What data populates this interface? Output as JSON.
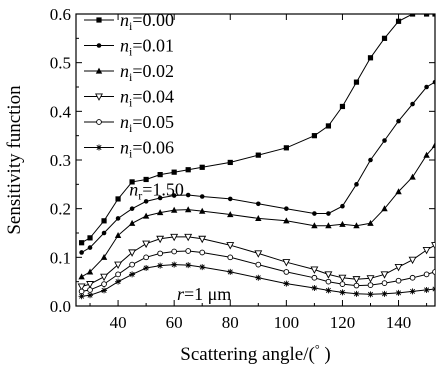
{
  "chart_data": {
    "type": "line",
    "xlabel": "Scattering angle/(",
    "xlabel_unit": "°",
    "xlabel_close": ")",
    "ylabel": "Sensitivity function",
    "xlim": [
      25,
      153
    ],
    "ylim": [
      0.0,
      0.6
    ],
    "x_ticks": [
      40,
      60,
      80,
      100,
      120,
      140
    ],
    "y_ticks": [
      0.0,
      0.1,
      0.2,
      0.3,
      0.4,
      0.5,
      0.6
    ],
    "y_tick_labels": [
      "0.0",
      "0.1",
      "0.2",
      "0.3",
      "0.4",
      "0.5",
      "0.6"
    ],
    "grid": false,
    "legend_position": "top-left",
    "series": [
      {
        "legend_var": "n",
        "legend_sub": "i",
        "legend_val": "=0.00",
        "marker": "square",
        "x": [
          27,
          30,
          35,
          40,
          45,
          50,
          55,
          60,
          65,
          70,
          80,
          90,
          100,
          110,
          115,
          120,
          125,
          130,
          135,
          140,
          145,
          150,
          153
        ],
        "y": [
          0.13,
          0.14,
          0.175,
          0.22,
          0.255,
          0.26,
          0.27,
          0.275,
          0.28,
          0.285,
          0.295,
          0.31,
          0.325,
          0.35,
          0.37,
          0.41,
          0.46,
          0.51,
          0.55,
          0.585,
          0.6,
          0.6,
          0.6
        ]
      },
      {
        "legend_var": "n",
        "legend_sub": "i",
        "legend_val": "=0.01",
        "marker": "dot",
        "x": [
          27,
          30,
          35,
          40,
          45,
          50,
          55,
          60,
          65,
          70,
          80,
          90,
          100,
          110,
          115,
          120,
          125,
          130,
          135,
          140,
          145,
          150,
          153
        ],
        "y": [
          0.11,
          0.12,
          0.15,
          0.18,
          0.2,
          0.215,
          0.222,
          0.227,
          0.228,
          0.225,
          0.22,
          0.21,
          0.2,
          0.19,
          0.19,
          0.205,
          0.25,
          0.3,
          0.34,
          0.38,
          0.415,
          0.45,
          0.46
        ]
      },
      {
        "legend_var": "n",
        "legend_sub": "i",
        "legend_val": "=0.02",
        "marker": "triangle",
        "x": [
          27,
          30,
          35,
          40,
          45,
          50,
          55,
          60,
          65,
          70,
          80,
          90,
          100,
          110,
          115,
          120,
          125,
          130,
          135,
          140,
          145,
          150,
          153
        ],
        "y": [
          0.06,
          0.07,
          0.1,
          0.145,
          0.17,
          0.185,
          0.192,
          0.197,
          0.198,
          0.195,
          0.188,
          0.18,
          0.175,
          0.165,
          0.165,
          0.168,
          0.165,
          0.17,
          0.2,
          0.235,
          0.265,
          0.31,
          0.33
        ]
      },
      {
        "legend_var": "n",
        "legend_sub": "i",
        "legend_val": "=0.04",
        "marker": "triangle-down",
        "x": [
          27,
          30,
          35,
          40,
          45,
          50,
          55,
          60,
          65,
          70,
          80,
          90,
          100,
          110,
          115,
          120,
          125,
          130,
          135,
          140,
          145,
          150,
          153
        ],
        "y": [
          0.04,
          0.045,
          0.06,
          0.085,
          0.11,
          0.128,
          0.138,
          0.142,
          0.142,
          0.138,
          0.125,
          0.108,
          0.09,
          0.075,
          0.065,
          0.058,
          0.055,
          0.057,
          0.065,
          0.08,
          0.095,
          0.115,
          0.125
        ]
      },
      {
        "legend_var": "n",
        "legend_sub": "i",
        "legend_val": "=0.05",
        "marker": "circle-open",
        "x": [
          27,
          30,
          35,
          40,
          45,
          50,
          55,
          60,
          65,
          70,
          80,
          90,
          100,
          110,
          115,
          120,
          125,
          130,
          135,
          140,
          145,
          150,
          153
        ],
        "y": [
          0.03,
          0.033,
          0.045,
          0.065,
          0.085,
          0.1,
          0.108,
          0.112,
          0.113,
          0.11,
          0.1,
          0.085,
          0.07,
          0.058,
          0.05,
          0.045,
          0.042,
          0.043,
          0.047,
          0.052,
          0.058,
          0.065,
          0.07
        ]
      },
      {
        "legend_var": "n",
        "legend_sub": "i",
        "legend_val": "=0.06",
        "marker": "star",
        "x": [
          27,
          30,
          35,
          40,
          45,
          50,
          55,
          60,
          65,
          70,
          80,
          90,
          100,
          110,
          115,
          120,
          125,
          130,
          135,
          140,
          145,
          150,
          153
        ],
        "y": [
          0.02,
          0.022,
          0.032,
          0.05,
          0.065,
          0.078,
          0.083,
          0.085,
          0.084,
          0.08,
          0.07,
          0.058,
          0.046,
          0.037,
          0.032,
          0.028,
          0.025,
          0.024,
          0.025,
          0.027,
          0.03,
          0.033,
          0.035
        ]
      }
    ],
    "annotations": [
      {
        "var": "n",
        "sub": "r",
        "val": "=1.50",
        "x": 44,
        "y": 0.227
      },
      {
        "var": "r",
        "sub": "",
        "val": "=1 μm",
        "x": 61,
        "y": 0.012
      }
    ]
  }
}
